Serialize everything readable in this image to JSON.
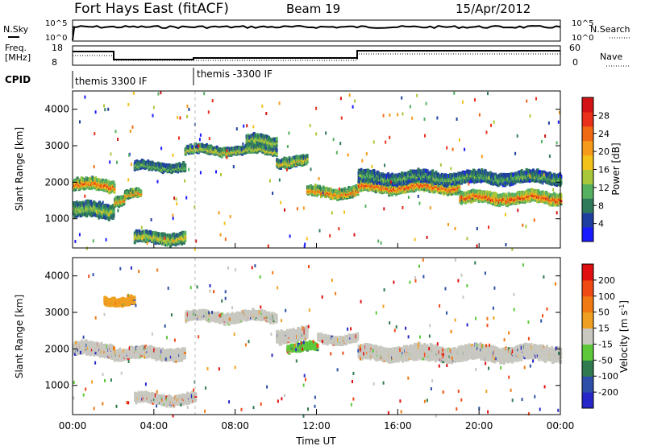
{
  "header": {
    "station": "Fort Hays East (fitACF)",
    "beam": "Beam 19",
    "date": "15/Apr/2012"
  },
  "status_panel": {
    "nsky_label": "N.Sky",
    "nsky_ticks": [
      "10^5",
      "10^0"
    ],
    "nsearch_label": "N.Search",
    "freq_label_line1": "Freq.",
    "freq_label_line2": "[MHz]",
    "freq_ticks": [
      "18",
      "8"
    ],
    "nave_label": "Nave",
    "nave_ticks": [
      "60",
      "0"
    ],
    "cpid_label": "CPID",
    "cpid_segments": [
      "themis 3300 IF",
      "themis -3300 IF"
    ]
  },
  "x_axis": {
    "label": "Time UT",
    "ticks": [
      "00:00",
      "04:00",
      "08:00",
      "12:00",
      "16:00",
      "20:00",
      "00:00"
    ]
  },
  "chart_data": [
    {
      "type": "heatmap",
      "panel": "power",
      "ylabel": "Slant Range [km]",
      "yticks": [
        1000,
        2000,
        3000,
        4000
      ],
      "ylim": [
        200,
        4500
      ],
      "xlim_hours": [
        0,
        24
      ],
      "colorbar_label": "Power [dB]",
      "colorbar_ticks": [
        "4",
        "8",
        "12",
        "16",
        "20",
        "24",
        "28"
      ],
      "colors": [
        "#1a1aff",
        "#1f3fa0",
        "#2f7a5a",
        "#55b060",
        "#a8c83a",
        "#f2c21a",
        "#f59a1a",
        "#f06a14",
        "#e8301a",
        "#d41414"
      ],
      "bands": [
        {
          "t0": 0.0,
          "t1": 2.0,
          "r": 1950,
          "w": 250,
          "lvl": 0.85
        },
        {
          "t0": 0.0,
          "t1": 2.0,
          "r": 1250,
          "w": 350,
          "lvl": 0.45
        },
        {
          "t0": 2.0,
          "t1": 2.5,
          "r": 1550,
          "w": 200,
          "lvl": 0.7
        },
        {
          "t0": 2.5,
          "t1": 3.3,
          "r": 1700,
          "w": 150,
          "lvl": 0.75
        },
        {
          "t0": 3.0,
          "t1": 5.5,
          "r": 2450,
          "w": 150,
          "lvl": 0.4
        },
        {
          "t0": 5.5,
          "t1": 10.0,
          "r": 2900,
          "w": 150,
          "lvl": 0.55
        },
        {
          "t0": 8.5,
          "t1": 10.0,
          "r": 3150,
          "w": 200,
          "lvl": 0.5
        },
        {
          "t0": 3.0,
          "t1": 5.5,
          "r": 500,
          "w": 250,
          "lvl": 0.55
        },
        {
          "t0": 10.0,
          "t1": 11.5,
          "r": 2600,
          "w": 200,
          "lvl": 0.6
        },
        {
          "t0": 11.5,
          "t1": 14.0,
          "r": 1750,
          "w": 200,
          "lvl": 0.8
        },
        {
          "t0": 14.0,
          "t1": 19.0,
          "r": 1900,
          "w": 250,
          "lvl": 0.85
        },
        {
          "t0": 19.0,
          "t1": 24.0,
          "r": 1600,
          "w": 250,
          "lvl": 0.9
        },
        {
          "t0": 14.0,
          "t1": 24.0,
          "r": 2150,
          "w": 250,
          "lvl": 0.35
        }
      ]
    },
    {
      "type": "heatmap",
      "panel": "velocity",
      "ylabel": "Slant Range [km]",
      "yticks": [
        1000,
        2000,
        3000,
        4000
      ],
      "ylim": [
        200,
        4500
      ],
      "xlim_hours": [
        0,
        24
      ],
      "colorbar_label": "Velocity [m s^-1]",
      "colorbar_ticks": [
        "200",
        "100",
        "50",
        "15",
        "-15",
        "-50",
        "-100",
        "-200"
      ],
      "colors": [
        "#2626c8",
        "#2e4fa8",
        "#2f7a4e",
        "#5cc83a",
        "#c8c8c0",
        "#f0a020",
        "#f07a14",
        "#f04a14",
        "#e01010"
      ],
      "bands": [
        {
          "t0": 0.0,
          "t1": 2.0,
          "r": 2000,
          "w": 300,
          "lvl": 4
        },
        {
          "t0": 2.0,
          "t1": 5.5,
          "r": 1900,
          "w": 250,
          "lvl": 4
        },
        {
          "t0": 5.5,
          "t1": 10.0,
          "r": 2900,
          "w": 200,
          "lvl": 4
        },
        {
          "t0": 10.0,
          "t1": 11.5,
          "r": 2400,
          "w": 300,
          "lvl": 4
        },
        {
          "t0": 10.5,
          "t1": 12.0,
          "r": 2050,
          "w": 150,
          "lvl": 3
        },
        {
          "t0": 3.0,
          "t1": 6.0,
          "r": 650,
          "w": 200,
          "lvl": 4
        },
        {
          "t0": 12.0,
          "t1": 14.0,
          "r": 2300,
          "w": 150,
          "lvl": 4
        },
        {
          "t0": 14.0,
          "t1": 24.0,
          "r": 1900,
          "w": 350,
          "lvl": 4
        },
        {
          "t0": 1.5,
          "t1": 3.0,
          "r": 3350,
          "w": 150,
          "lvl": 5
        }
      ]
    }
  ]
}
